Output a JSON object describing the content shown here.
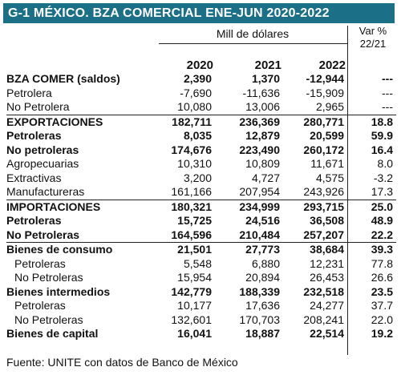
{
  "title": "G-1  MÉXICO. BZA COMERCIAL ENE-JUN 2020-2022",
  "units_label": "Mill de dólares",
  "var_label_line1": "Var %",
  "var_label_line2": "22/21",
  "years": [
    "2020",
    "2021",
    "2022"
  ],
  "rows": [
    {
      "label": "BZA COMER (saldos)",
      "v2020": "2,390",
      "v2021": "1,370",
      "v2022": "-12,944",
      "var": "---",
      "bold": true,
      "sep": false,
      "indent": false
    },
    {
      "label": "Petrolera",
      "v2020": "-7,690",
      "v2021": "-11,636",
      "v2022": "-15,909",
      "var": "---",
      "bold": false,
      "sep": false,
      "indent": false
    },
    {
      "label": "No Petrolera",
      "v2020": "10,080",
      "v2021": "13,006",
      "v2022": "2,965",
      "var": "---",
      "bold": false,
      "sep": false,
      "indent": false
    },
    {
      "label": "EXPORTACIONES",
      "v2020": "182,711",
      "v2021": "236,369",
      "v2022": "280,771",
      "var": "18.8",
      "bold": true,
      "sep": true,
      "indent": false
    },
    {
      "label": "Petroleras",
      "v2020": "8,035",
      "v2021": "12,879",
      "v2022": "20,599",
      "var": "59.9",
      "bold": true,
      "sep": false,
      "indent": false
    },
    {
      "label": "No petroleras",
      "v2020": "174,676",
      "v2021": "223,490",
      "v2022": "260,172",
      "var": "16.4",
      "bold": true,
      "sep": false,
      "indent": false
    },
    {
      "label": "Agropecuarias",
      "v2020": "10,310",
      "v2021": "10,809",
      "v2022": "11,671",
      "var": "8.0",
      "bold": false,
      "sep": false,
      "indent": false
    },
    {
      "label": "Extractivas",
      "v2020": "3,200",
      "v2021": "4,727",
      "v2022": "4,575",
      "var": "-3.2",
      "bold": false,
      "sep": false,
      "indent": false
    },
    {
      "label": "Manufactureras",
      "v2020": "161,166",
      "v2021": "207,954",
      "v2022": "243,926",
      "var": "17.3",
      "bold": false,
      "sep": false,
      "indent": false
    },
    {
      "label": "IMPORTACIONES",
      "v2020": "180,321",
      "v2021": "234,999",
      "v2022": "293,715",
      "var": "25.0",
      "bold": true,
      "sep": true,
      "indent": false
    },
    {
      "label": "Petroleras",
      "v2020": "15,725",
      "v2021": "24,516",
      "v2022": "36,508",
      "var": "48.9",
      "bold": true,
      "sep": false,
      "indent": false
    },
    {
      "label": "No Petroleras",
      "v2020": "164,596",
      "v2021": "210,484",
      "v2022": "257,207",
      "var": "22.2",
      "bold": true,
      "sep": false,
      "indent": false
    },
    {
      "label": "Bienes de consumo",
      "v2020": "21,501",
      "v2021": "27,773",
      "v2022": "38,684",
      "var": "39.3",
      "bold": true,
      "sep": true,
      "indent": false
    },
    {
      "label": "Petroleras",
      "v2020": "5,548",
      "v2021": "6,880",
      "v2022": "12,231",
      "var": "77.8",
      "bold": false,
      "sep": false,
      "indent": true
    },
    {
      "label": "No Petroleras",
      "v2020": "15,954",
      "v2021": "20,894",
      "v2022": "26,453",
      "var": "26.6",
      "bold": false,
      "sep": false,
      "indent": true
    },
    {
      "label": "Bienes intermedios",
      "v2020": "142,779",
      "v2021": "188,339",
      "v2022": "232,518",
      "var": "23.5",
      "bold": true,
      "sep": false,
      "indent": false
    },
    {
      "label": "Petroleras",
      "v2020": "10,177",
      "v2021": "17,636",
      "v2022": "24,277",
      "var": "37.7",
      "bold": false,
      "sep": false,
      "indent": true
    },
    {
      "label": "No Petroleras",
      "v2020": "132,601",
      "v2021": "170,703",
      "v2022": "208,241",
      "var": "22.0",
      "bold": false,
      "sep": false,
      "indent": true
    },
    {
      "label": "Bienes de capital",
      "v2020": "16,041",
      "v2021": "18,887",
      "v2022": "22,514",
      "var": "19.2",
      "bold": true,
      "sep": false,
      "indent": false
    }
  ],
  "source": "Fuente: UNITE con datos de Banco de México"
}
